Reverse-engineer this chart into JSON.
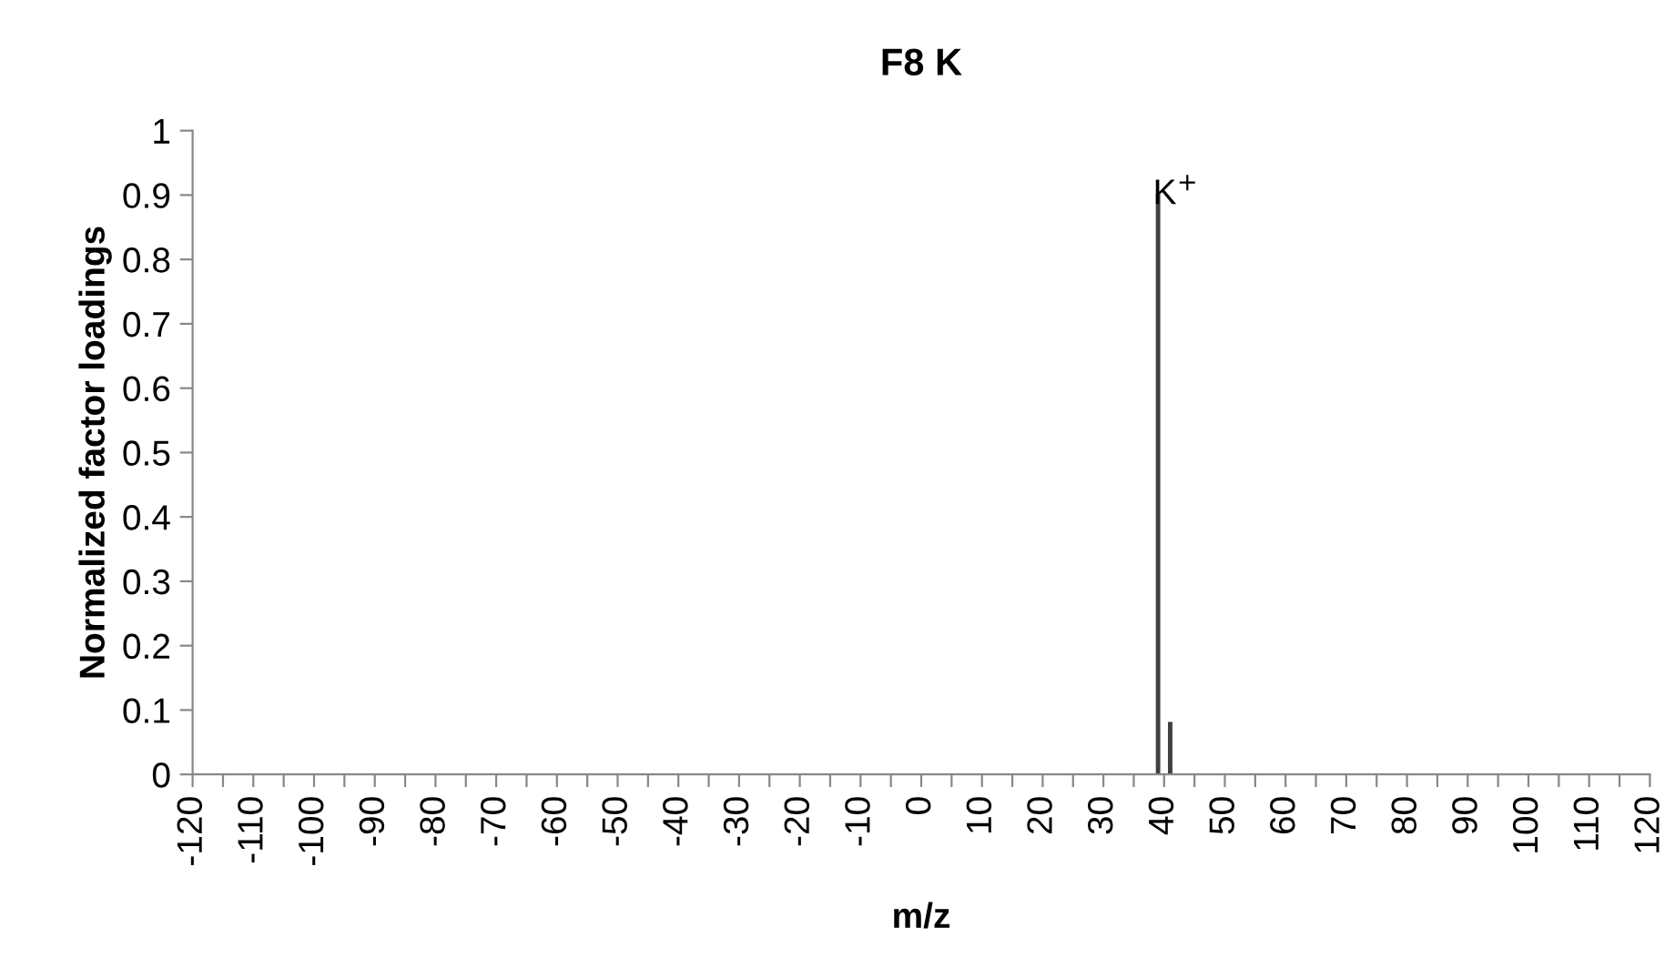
{
  "chart_data": {
    "type": "bar",
    "title": "F8 K",
    "xlabel": "m/z",
    "ylabel": "Normalized factor loadings",
    "x": [
      39,
      41
    ],
    "values": [
      0.9,
      0.08
    ],
    "color": "#404040",
    "annotations": [
      {
        "text": "K$^{+}$",
        "x": 39,
        "y": 0.9
      }
    ],
    "xlim": [
      -120,
      120
    ],
    "xticks": [
      -120,
      {
        "value": -115,
        "label": null
      },
      -110,
      {
        "value": -105,
        "label": null
      },
      -100,
      {
        "value": -95,
        "label": null
      },
      -90,
      {
        "value": -85,
        "label": null
      },
      -80,
      {
        "value": -75,
        "label": null
      },
      -70,
      {
        "value": -65,
        "label": null
      },
      -60,
      {
        "value": -55,
        "label": null
      },
      -50,
      {
        "value": -45,
        "label": null
      },
      -40,
      {
        "value": -35,
        "label": null
      },
      -30,
      {
        "value": -25,
        "label": null
      },
      -20,
      {
        "value": -15,
        "label": null
      },
      -10,
      {
        "value": -5,
        "label": null
      },
      0,
      {
        "value": 5,
        "label": null
      },
      10,
      {
        "value": 15,
        "label": null
      },
      20,
      {
        "value": 25,
        "label": null
      },
      30,
      {
        "value": 35,
        "label": null
      },
      40,
      {
        "value": 45,
        "label": null
      },
      50,
      {
        "value": 55,
        "label": null
      },
      60,
      {
        "value": 65,
        "label": null
      },
      70,
      {
        "value": 75,
        "label": null
      },
      80,
      {
        "value": 85,
        "label": null
      },
      90,
      {
        "value": 95,
        "label": null
      },
      100,
      {
        "value": 105,
        "label": null
      },
      110,
      {
        "value": 115,
        "label": null
      },
      120
    ],
    "ylim": [
      0,
      1
    ],
    "yticks": [
      0,
      0.1,
      0.2,
      0.3,
      0.4,
      0.5,
      0.6,
      0.7,
      0.8,
      0.9,
      1
    ],
    "grid": false,
    "legend": false
  }
}
